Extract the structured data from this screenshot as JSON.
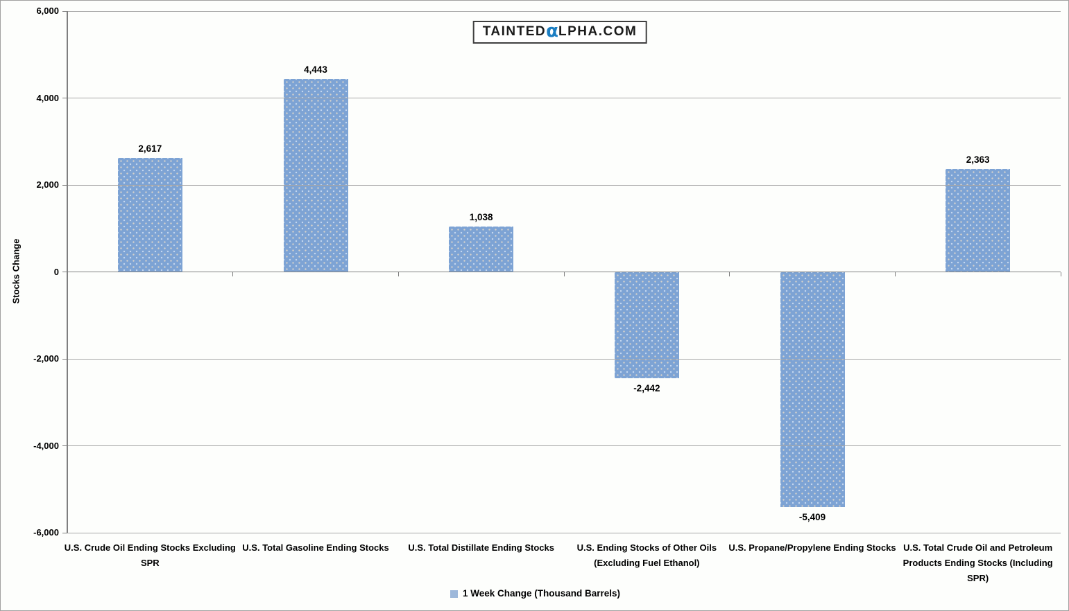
{
  "logo": {
    "part1": "TAINTED",
    "alpha": "α",
    "part2": "LPHA.COM",
    "alpha_color": "#1b7ec2"
  },
  "legend": {
    "label": "1 Week Change (Thousand Barrels)",
    "swatch_color": "#9db8da"
  },
  "chart_data": {
    "type": "bar",
    "title": "",
    "xlabel": "",
    "ylabel": "Stocks Change",
    "ylim": [
      -6000,
      6000
    ],
    "ytick_interval": 2000,
    "grid": true,
    "gridlines_above_bars": true,
    "legend_position": "bottom",
    "bar_color": "#7da3d4",
    "yticks": [
      {
        "value": 6000,
        "label": "6,000"
      },
      {
        "value": 4000,
        "label": "4,000"
      },
      {
        "value": 2000,
        "label": "2,000"
      },
      {
        "value": 0,
        "label": "0"
      },
      {
        "value": -2000,
        "label": "-2,000"
      },
      {
        "value": -4000,
        "label": "-4,000"
      },
      {
        "value": -6000,
        "label": "-6,000"
      }
    ],
    "categories": [
      "U.S. Crude Oil Ending Stocks Excluding SPR",
      "U.S. Total Gasoline Ending Stocks",
      "U.S. Total Distillate Ending Stocks",
      "U.S. Ending Stocks of Other Oils (Excluding Fuel Ethanol)",
      "U.S. Propane/Propylene Ending Stocks",
      "U.S. Total Crude Oil and Petroleum Products Ending Stocks (Including SPR)"
    ],
    "series": [
      {
        "name": "1 Week Change (Thousand Barrels)",
        "values": [
          2617,
          4443,
          1038,
          -2442,
          -5409,
          2363
        ],
        "value_labels": [
          "2,617",
          "4,443",
          "1,038",
          "-2,442",
          "-5,409",
          "2,363"
        ]
      }
    ]
  }
}
